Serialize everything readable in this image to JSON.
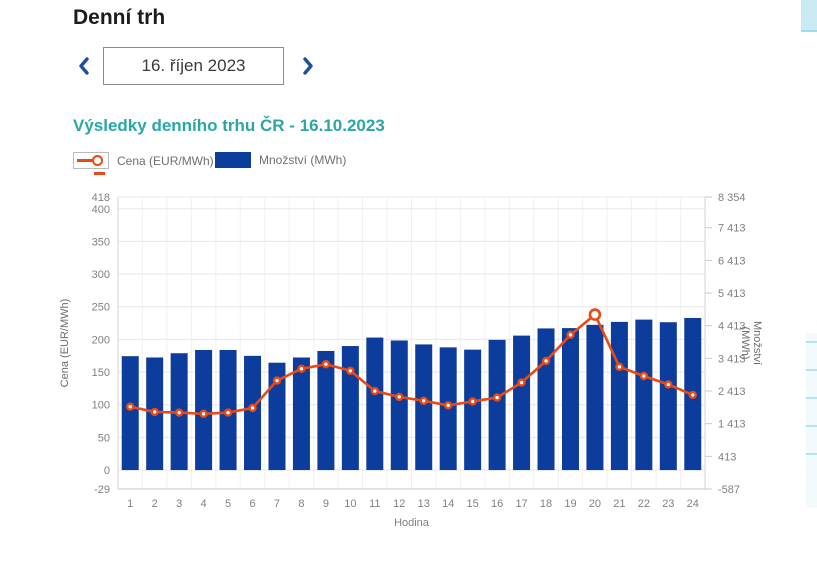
{
  "page": {
    "title": "Denní trh"
  },
  "date_nav": {
    "value": "16. říjen 2023",
    "prev_icon": "chevron-left",
    "next_icon": "chevron-right"
  },
  "chart": {
    "title": "Výsledky denního trhu ČR - 16.10.2023",
    "legend": [
      {
        "label": "Cena (EUR/MWh)",
        "color": "#e84a17"
      },
      {
        "label": "Množství (MWh)",
        "color": "#0d3d9c"
      }
    ]
  },
  "chart_data": {
    "type": "bar+line",
    "title": "Výsledky denního trhu ČR - 16.10.2023",
    "xlabel": "Hodina",
    "categories": [
      1,
      2,
      3,
      4,
      5,
      6,
      7,
      8,
      9,
      10,
      11,
      12,
      13,
      14,
      15,
      16,
      17,
      18,
      19,
      20,
      21,
      22,
      23,
      24
    ],
    "series": [
      {
        "name": "Cena (EUR/MWh)",
        "type": "line",
        "axis": "left",
        "color": "#e84a17",
        "values": [
          97,
          89,
          88,
          86,
          88,
          95,
          137,
          155,
          162,
          152,
          121,
          112,
          106,
          99,
          105,
          111,
          134,
          167,
          207,
          238,
          158,
          144,
          131,
          115
        ]
      },
      {
        "name": "Množství (MWh)",
        "type": "bar",
        "axis": "right",
        "color": "#0d3d9c",
        "values": [
          3480,
          3440,
          3570,
          3670,
          3670,
          3490,
          3280,
          3440,
          3640,
          3790,
          4050,
          3960,
          3840,
          3750,
          3680,
          3980,
          4110,
          4330,
          4340,
          4440,
          4530,
          4600,
          4520,
          4650
        ]
      }
    ],
    "left_axis": {
      "title": "Cena (EUR/MWh)",
      "range": [
        -29,
        418
      ],
      "tick_values": [
        418,
        400,
        350,
        300,
        250,
        200,
        150,
        100,
        50,
        0,
        -29
      ],
      "tick_labels": [
        "418",
        "400",
        "350",
        "300",
        "250",
        "200",
        "150",
        "100",
        "50",
        "0",
        "-29"
      ]
    },
    "right_axis": {
      "title_lines": [
        "Množství",
        "(MWh)"
      ],
      "range": [
        -587,
        8354
      ],
      "tick_values": [
        8354,
        7413,
        6413,
        5413,
        4413,
        3413,
        2413,
        1413,
        413,
        -587
      ],
      "tick_labels": [
        "8 354",
        "7 413",
        "6 413",
        "5 413",
        "4 413",
        "3 413",
        "2 413",
        "1 413",
        "413",
        "-587"
      ]
    },
    "grid": true,
    "legend_position": "top-left"
  }
}
